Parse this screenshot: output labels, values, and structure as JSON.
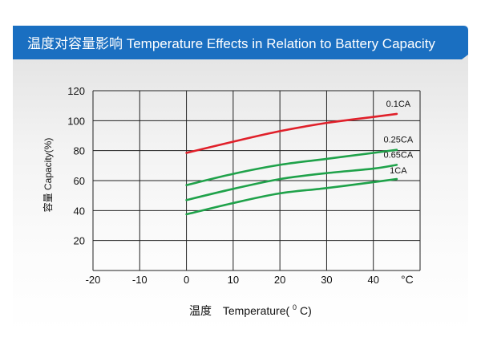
{
  "header": {
    "title": "温度对容量影响 Temperature Effects in Relation to Battery Capacity",
    "banner_color": "#1a6fc1"
  },
  "chart_data": {
    "type": "line",
    "title": "温度对容量影响 Temperature Effects in Relation to Battery Capacity",
    "xlabel_cn": "温度",
    "xlabel_en": "Temperature(",
    "xlabel_unit_sup": "0",
    "xlabel_unit_suffix": "C)",
    "ylabel": "容量 Capacity(%)",
    "x_unit": "°C",
    "x_ticks": [
      "-20",
      "-10",
      "0",
      "10",
      "20",
      "30",
      "40"
    ],
    "y_ticks": [
      "20",
      "40",
      "60",
      "80",
      "100",
      "120"
    ],
    "xlim": [
      -20,
      50
    ],
    "ylim": [
      0,
      120
    ],
    "grid": true,
    "series": [
      {
        "name": "0.1CA",
        "color": "#e0202a",
        "x": [
          0,
          10,
          20,
          30,
          40,
          45
        ],
        "y": [
          78.5,
          86,
          93,
          98.5,
          102.5,
          104.5
        ]
      },
      {
        "name": "0.25CA",
        "color": "#1fa24a",
        "x": [
          0,
          10,
          20,
          30,
          40,
          45
        ],
        "y": [
          57,
          64.5,
          70.5,
          74.5,
          78.5,
          80.5
        ]
      },
      {
        "name": "0.65CA",
        "color": "#1fa24a",
        "x": [
          0,
          10,
          20,
          30,
          40,
          45
        ],
        "y": [
          47,
          54.5,
          61,
          65,
          68,
          70.5
        ]
      },
      {
        "name": "1CA",
        "color": "#1fa24a",
        "x": [
          0,
          10,
          20,
          30,
          40,
          45
        ],
        "y": [
          37.5,
          45,
          51.5,
          55,
          59,
          61
        ]
      }
    ]
  }
}
